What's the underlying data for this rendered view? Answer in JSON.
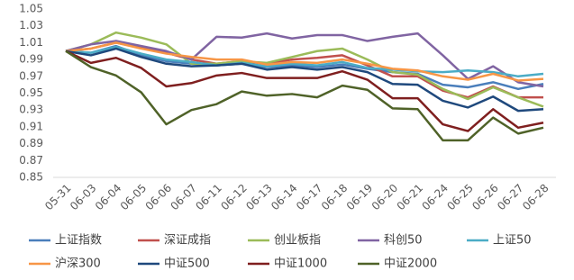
{
  "chart_data": {
    "type": "line",
    "categories": [
      "05-31",
      "06-03",
      "06-04",
      "06-05",
      "06-06",
      "06-07",
      "06-11",
      "06-12",
      "06-13",
      "06-14",
      "06-17",
      "06-18",
      "06-19",
      "06-20",
      "06-21",
      "06-24",
      "06-25",
      "06-26",
      "06-27",
      "06-28"
    ],
    "ylim": [
      0.85,
      1.05
    ],
    "yticks": [
      0.85,
      0.87,
      0.89,
      0.91,
      0.93,
      0.95,
      0.97,
      0.99,
      1.01,
      1.03,
      1.05
    ],
    "grid": false,
    "legend": "bottom",
    "series": [
      {
        "name": "上证指数",
        "color": "#4a7ebb",
        "values": [
          1.0,
          0.998,
          1.006,
          0.995,
          0.988,
          0.985,
          0.983,
          0.985,
          0.981,
          0.983,
          0.981,
          0.984,
          0.979,
          0.975,
          0.973,
          0.96,
          0.957,
          0.963,
          0.955,
          0.961
        ]
      },
      {
        "name": "深证成指",
        "color": "#c0504d",
        "values": [
          1.0,
          1.003,
          1.01,
          1.004,
          0.998,
          0.99,
          0.985,
          0.988,
          0.985,
          0.99,
          0.992,
          0.995,
          0.983,
          0.97,
          0.97,
          0.953,
          0.945,
          0.958,
          0.945,
          0.945
        ]
      },
      {
        "name": "创业板指",
        "color": "#9bbb59",
        "values": [
          1.0,
          1.008,
          1.022,
          1.016,
          1.008,
          0.985,
          0.985,
          0.988,
          0.986,
          0.993,
          1.0,
          1.003,
          0.99,
          0.975,
          0.972,
          0.955,
          0.943,
          0.957,
          0.945,
          0.934
        ]
      },
      {
        "name": "科创50",
        "color": "#8064a2",
        "values": [
          1.0,
          1.008,
          1.012,
          1.006,
          1.0,
          0.99,
          1.017,
          1.016,
          1.021,
          1.015,
          1.019,
          1.019,
          1.012,
          1.017,
          1.021,
          0.995,
          0.967,
          0.982,
          0.963,
          0.958
        ]
      },
      {
        "name": "上证50",
        "color": "#4bacc6",
        "values": [
          1.0,
          0.998,
          1.005,
          0.997,
          0.99,
          0.987,
          0.983,
          0.986,
          0.982,
          0.985,
          0.983,
          0.987,
          0.98,
          0.978,
          0.976,
          0.975,
          0.977,
          0.975,
          0.97,
          0.973
        ]
      },
      {
        "name": "沪深300",
        "color": "#f79646",
        "values": [
          1.0,
          1.003,
          1.01,
          1.003,
          0.997,
          0.993,
          0.99,
          0.99,
          0.984,
          0.987,
          0.986,
          0.99,
          0.985,
          0.979,
          0.977,
          0.97,
          0.966,
          0.973,
          0.965,
          0.967
        ]
      },
      {
        "name": "中证500",
        "color": "#1f497d",
        "values": [
          1.0,
          0.995,
          1.003,
          0.993,
          0.985,
          0.982,
          0.983,
          0.985,
          0.978,
          0.981,
          0.978,
          0.981,
          0.975,
          0.961,
          0.96,
          0.941,
          0.933,
          0.946,
          0.929,
          0.931
        ]
      },
      {
        "name": "中证1000",
        "color": "#7f1f1f",
        "values": [
          1.0,
          0.986,
          0.992,
          0.98,
          0.958,
          0.962,
          0.971,
          0.974,
          0.968,
          0.968,
          0.968,
          0.976,
          0.966,
          0.944,
          0.944,
          0.913,
          0.905,
          0.931,
          0.909,
          0.915
        ]
      },
      {
        "name": "中证2000",
        "color": "#4f6228",
        "values": [
          1.0,
          0.981,
          0.971,
          0.951,
          0.913,
          0.93,
          0.937,
          0.952,
          0.947,
          0.949,
          0.945,
          0.959,
          0.954,
          0.932,
          0.931,
          0.894,
          0.894,
          0.921,
          0.902,
          0.909
        ]
      }
    ]
  }
}
